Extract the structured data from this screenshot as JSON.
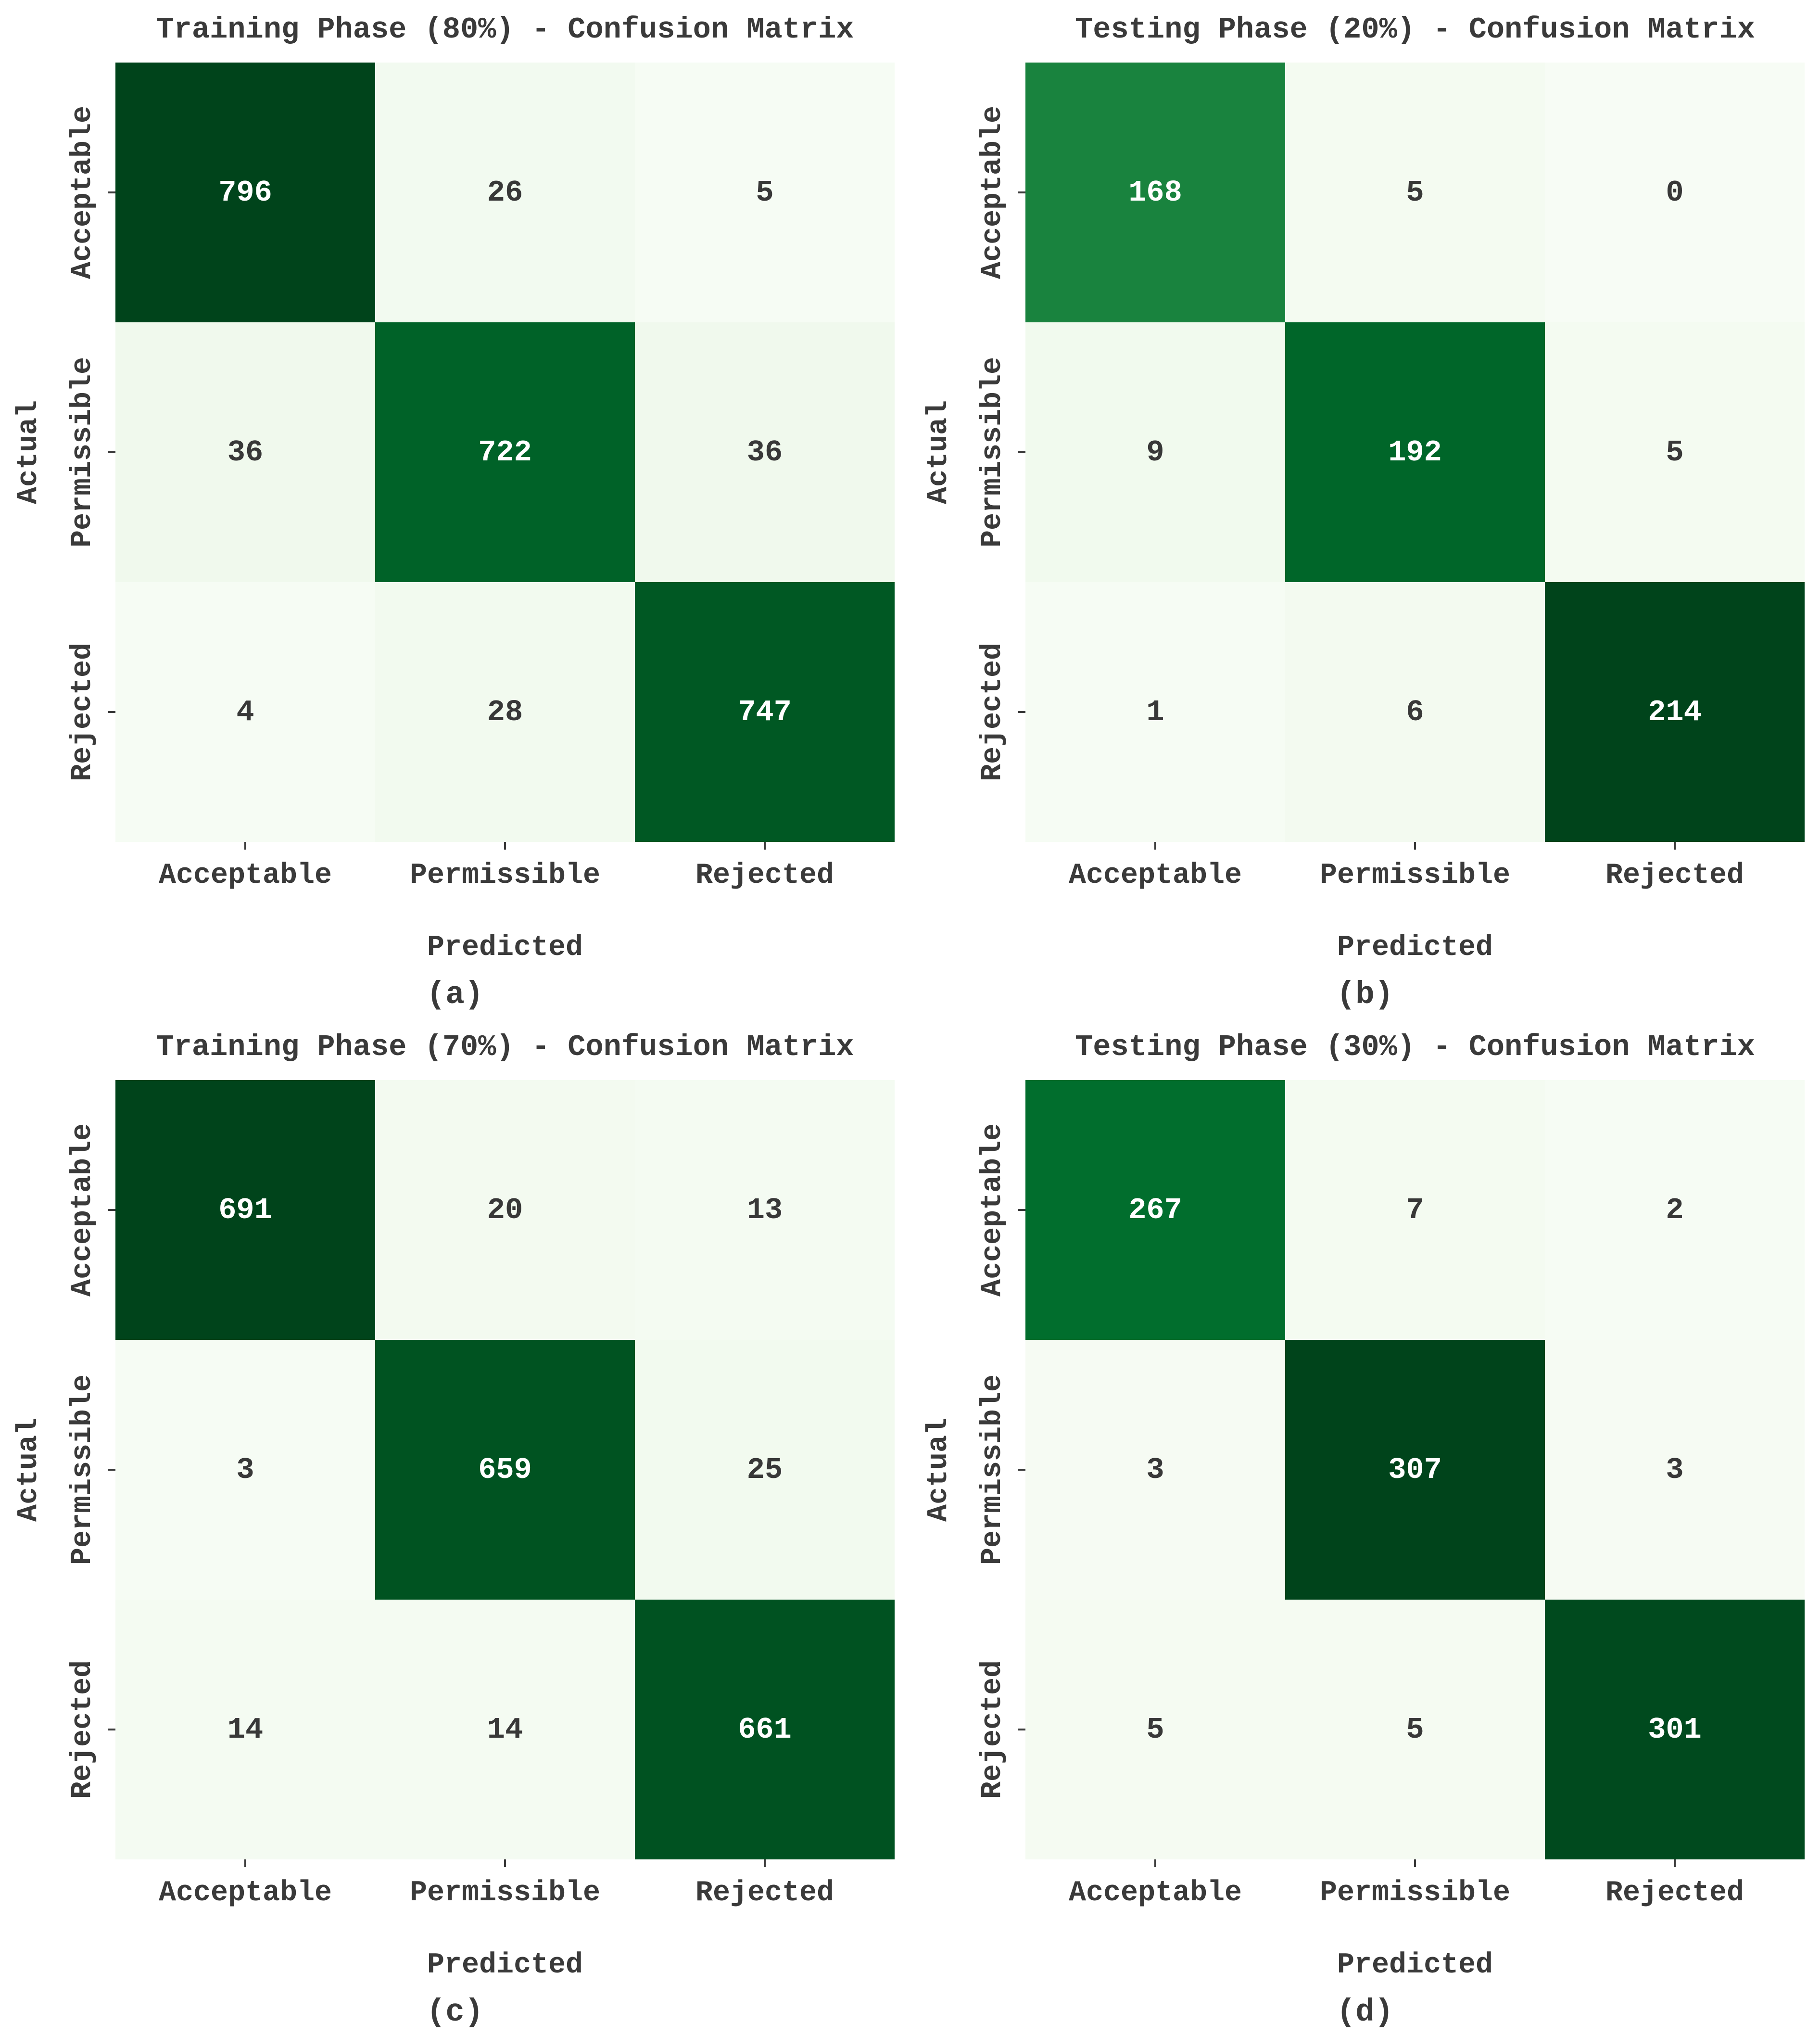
{
  "figure": {
    "background": "#ffffff",
    "axis_text_color": "#3a3a3a",
    "cell_text_dark": "#383838",
    "cell_text_light": "#ffffff",
    "colormap": {
      "name": "Greens",
      "stops": [
        "#f7fcf5",
        "#e5f5e0",
        "#c7e9c0",
        "#a1d99b",
        "#74c476",
        "#41ab5d",
        "#238b45",
        "#006d2c",
        "#00441b"
      ]
    }
  },
  "chart_data": [
    {
      "type": "heatmap",
      "title": "Training Phase (80%) - Confusion Matrix",
      "caption": "(a)",
      "xlabel": "Predicted",
      "ylabel": "Actual",
      "x_tick_labels": [
        "Acceptable",
        "Permissible",
        "Rejected"
      ],
      "y_tick_labels": [
        "Acceptable",
        "Permissible",
        "Rejected"
      ],
      "values": [
        [
          796,
          26,
          5
        ],
        [
          36,
          722,
          36
        ],
        [
          4,
          28,
          747
        ]
      ],
      "vmin": 0,
      "vmax": 796,
      "grid": false,
      "legend": "none"
    },
    {
      "type": "heatmap",
      "title": "Testing Phase (20%) - Confusion Matrix",
      "caption": "(b)",
      "xlabel": "Predicted",
      "ylabel": "Actual",
      "x_tick_labels": [
        "Acceptable",
        "Permissible",
        "Rejected"
      ],
      "y_tick_labels": [
        "Acceptable",
        "Permissible",
        "Rejected"
      ],
      "values": [
        [
          168,
          5,
          0
        ],
        [
          9,
          192,
          5
        ],
        [
          1,
          6,
          214
        ]
      ],
      "vmin": 0,
      "vmax": 214,
      "grid": false,
      "legend": "none"
    },
    {
      "type": "heatmap",
      "title": "Training Phase (70%) - Confusion Matrix",
      "caption": "(c)",
      "xlabel": "Predicted",
      "ylabel": "Actual",
      "x_tick_labels": [
        "Acceptable",
        "Permissible",
        "Rejected"
      ],
      "y_tick_labels": [
        "Acceptable",
        "Permissible",
        "Rejected"
      ],
      "values": [
        [
          691,
          20,
          13
        ],
        [
          3,
          659,
          25
        ],
        [
          14,
          14,
          661
        ]
      ],
      "vmin": 0,
      "vmax": 691,
      "grid": false,
      "legend": "none"
    },
    {
      "type": "heatmap",
      "title": "Testing Phase (30%) - Confusion Matrix",
      "caption": "(d)",
      "xlabel": "Predicted",
      "ylabel": "Actual",
      "x_tick_labels": [
        "Acceptable",
        "Permissible",
        "Rejected"
      ],
      "y_tick_labels": [
        "Acceptable",
        "Permissible",
        "Rejected"
      ],
      "values": [
        [
          267,
          7,
          2
        ],
        [
          3,
          307,
          3
        ],
        [
          5,
          5,
          301
        ]
      ],
      "vmin": 0,
      "vmax": 307,
      "grid": false,
      "legend": "none"
    }
  ]
}
